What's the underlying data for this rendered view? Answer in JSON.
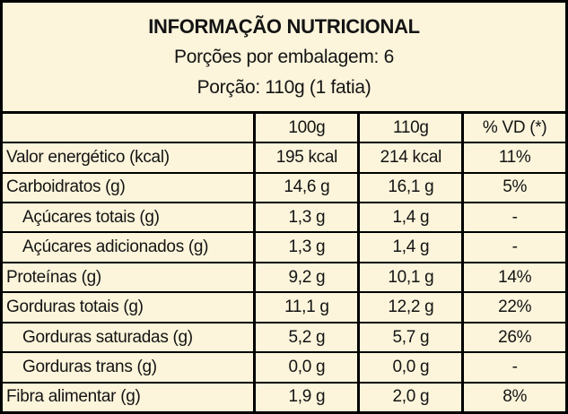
{
  "colors": {
    "background": "#FCF5DB",
    "border": "#000000",
    "text": "#141414"
  },
  "header": {
    "title": "INFORMAÇÃO NUTRICIONAL",
    "servings_line": "Porções por embalagem: 6",
    "portion_line": "Porção: 110g (1 fatia)"
  },
  "table": {
    "columns": [
      "",
      "100g",
      "110g",
      "% VD (*)"
    ],
    "rows": [
      {
        "label": "Valor energético (kcal)",
        "per_100g": "195 kcal",
        "per_110g": "214 kcal",
        "vd": "11%",
        "indent": false
      },
      {
        "label": "Carboidratos (g)",
        "per_100g": "14,6 g",
        "per_110g": "16,1 g",
        "vd": "5%",
        "indent": false
      },
      {
        "label": "Açúcares totais (g)",
        "per_100g": "1,3 g",
        "per_110g": "1,4 g",
        "vd": "-",
        "indent": true
      },
      {
        "label": "Açúcares adicionados (g)",
        "per_100g": "1,3 g",
        "per_110g": "1,4 g",
        "vd": "-",
        "indent": true
      },
      {
        "label": "Proteínas (g)",
        "per_100g": "9,2 g",
        "per_110g": "10,1 g",
        "vd": "14%",
        "indent": false
      },
      {
        "label": "Gorduras totais (g)",
        "per_100g": "11,1 g",
        "per_110g": "12,2 g",
        "vd": "22%",
        "indent": false
      },
      {
        "label": "Gorduras saturadas (g)",
        "per_100g": "5,2 g",
        "per_110g": "5,7 g",
        "vd": "26%",
        "indent": true
      },
      {
        "label": "Gorduras trans (g)",
        "per_100g": "0,0 g",
        "per_110g": "0,0 g",
        "vd": "-",
        "indent": true
      },
      {
        "label": "Fibra alimentar (g)",
        "per_100g": "1,9 g",
        "per_110g": "2,0 g",
        "vd": "8%",
        "indent": false
      }
    ]
  }
}
